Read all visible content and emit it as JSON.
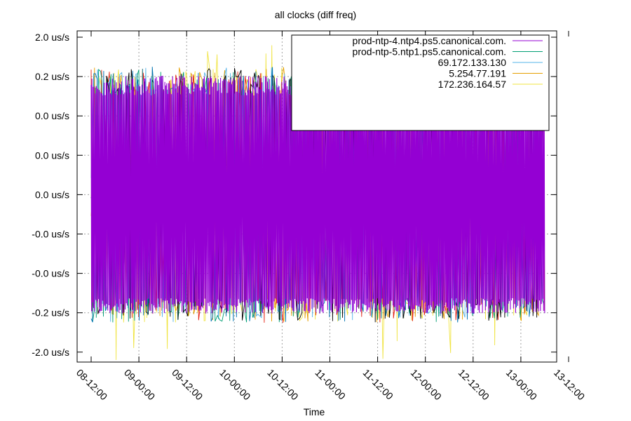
{
  "chart_data": {
    "type": "line",
    "title": "all clocks (diff freq)",
    "xlabel": "Time",
    "ylabel": "",
    "x_ticks": [
      "08-12:00",
      "09-00:00",
      "09-12:00",
      "10-00:00",
      "10-12:00",
      "11-00:00",
      "11-12:00",
      "12-00:00",
      "12-12:00",
      "13-00:00",
      "13-12:00"
    ],
    "y_ticks": [
      "2.0 us/s",
      "0.2 us/s",
      "0.0 us/s",
      "0.0 us/s",
      "0.0 us/s",
      "-0.0 us/s",
      "-0.0 us/s",
      "-0.2 us/s",
      "-2.0 us/s"
    ],
    "grid": true,
    "legend_position": "top-right",
    "series": [
      {
        "name": "prod-ntp-4.ntp4.ps5.canonical.com.",
        "color": "#9400d3",
        "style": "dense-oscillation",
        "amplitude": [
          -0.2,
          0.2
        ]
      },
      {
        "name": "prod-ntp-5.ntp1.ps5.canonical.com.",
        "color": "#009e73",
        "style": "sparse-spikes",
        "amplitude": [
          -0.25,
          0.25
        ]
      },
      {
        "name": "69.172.133.130",
        "color": "#56b4e9",
        "style": "sparse-spikes",
        "amplitude": [
          -0.25,
          0.25
        ]
      },
      {
        "name": "5.254.77.191",
        "color": "#e69f00",
        "style": "sparse-spikes",
        "amplitude": [
          -0.25,
          0.25
        ]
      },
      {
        "name": "172.236.164.57",
        "color": "#f0e442",
        "style": "sparse-spikes",
        "amplitude": [
          -2.0,
          2.0
        ]
      },
      {
        "name": "",
        "color": "#0072b2",
        "style": "sparse-spikes",
        "amplitude": [
          -0.2,
          0.2
        ]
      },
      {
        "name": "",
        "color": "#e51e10",
        "style": "sparse-spikes",
        "amplitude": [
          -0.2,
          0.2
        ]
      },
      {
        "name": "",
        "color": "#000000",
        "style": "sparse-spikes",
        "amplitude": [
          -0.25,
          0.25
        ]
      }
    ]
  }
}
